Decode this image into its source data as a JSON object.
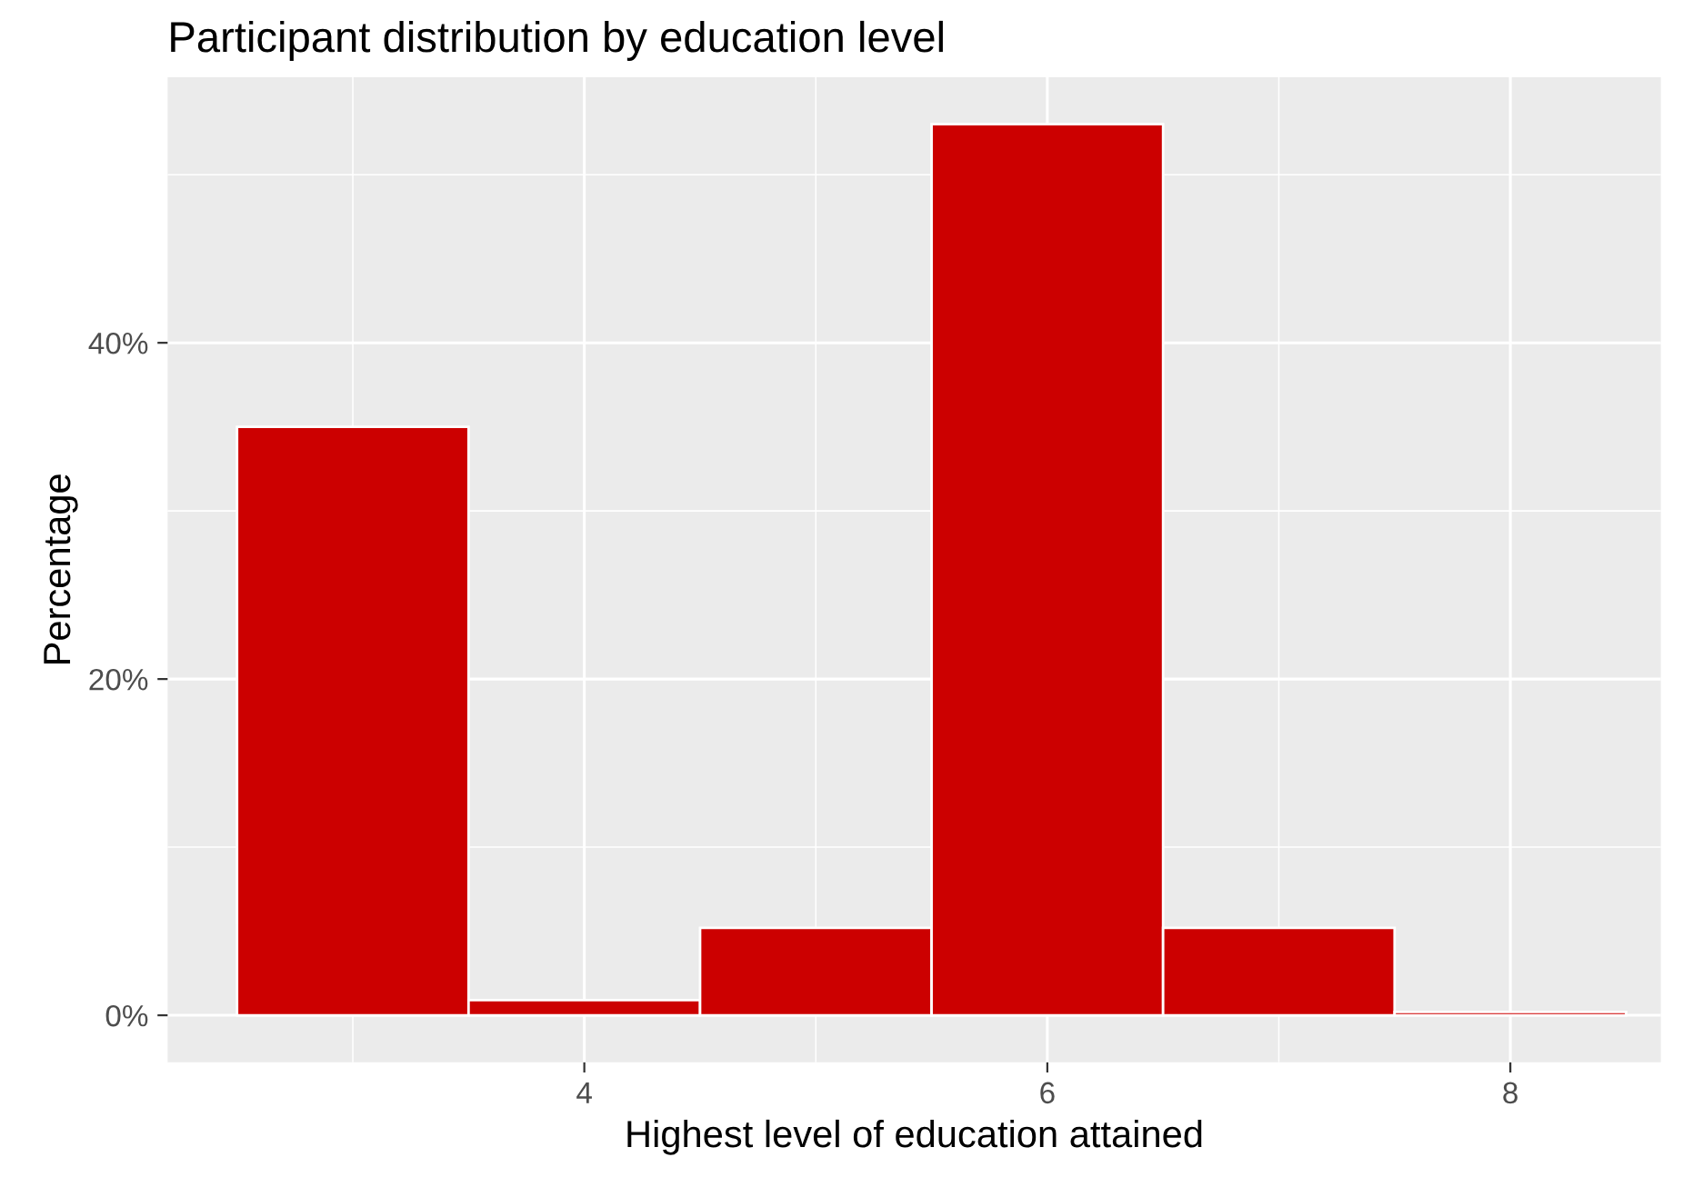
{
  "chart_data": {
    "type": "histogram",
    "title": "Participant distribution by education level",
    "xlabel": "Highest level of education attained",
    "ylabel": "Percentage",
    "bins": [
      2.5,
      3.5,
      4.5,
      5.5,
      6.5,
      7.5,
      8.5
    ],
    "values": [
      35,
      0.9,
      5.2,
      53,
      5.2,
      0.2
    ],
    "color": "#cc0000",
    "xlim": [
      2.2,
      8.65
    ],
    "xticks": [
      4,
      6,
      8
    ],
    "ylim": [
      -2.8,
      55.8
    ],
    "yticks": [
      {
        "value": 0,
        "label": "0%"
      },
      {
        "value": 20,
        "label": "20%"
      },
      {
        "value": 40,
        "label": "40%"
      }
    ],
    "grid": true
  }
}
